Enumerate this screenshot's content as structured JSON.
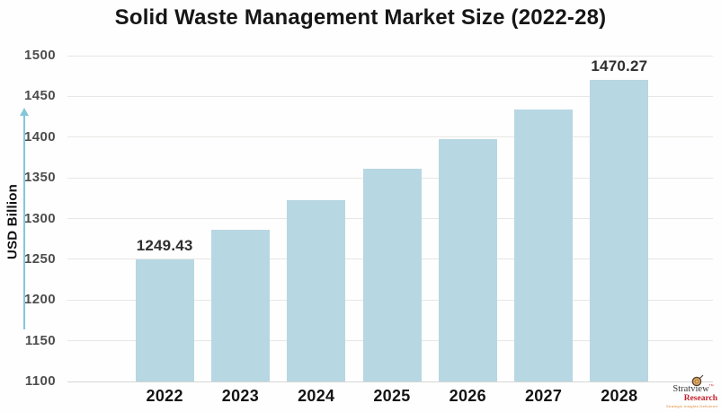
{
  "title": "Solid Waste Management Market Size (2022-28)",
  "y_axis": {
    "label": "USD Billion"
  },
  "chart_data": {
    "type": "bar",
    "title": "Solid Waste Management Market Size (2022-28)",
    "categories": [
      "2022",
      "2023",
      "2024",
      "2025",
      "2026",
      "2027",
      "2028"
    ],
    "values": [
      1249.43,
      1286,
      1323,
      1361,
      1397,
      1434,
      1470.27
    ],
    "bar_labels": [
      "1249.43",
      "",
      "",
      "",
      "",
      "",
      "1470.27"
    ],
    "xlabel": "",
    "ylabel": "USD Billion",
    "ylim": [
      1100,
      1500
    ],
    "yticks": [
      1500,
      1450,
      1400,
      1350,
      1300,
      1250,
      1200,
      1150,
      1100
    ],
    "grid": "horizontal",
    "legend": "none"
  },
  "branding": {
    "name": "Stratview",
    "trademark": "™",
    "division": "Research",
    "tagline": "Strategic Insights Delivered",
    "icon": "magnifying-glass-icon"
  },
  "colors": {
    "background": "#fefefe",
    "bar": "#b7d7e3",
    "gridline": "#e7e7e5",
    "gridline_bottom": "#d7d7d5",
    "axis_arrow": "#85c6da",
    "title_text": "#161616",
    "tick_text": "#4d4d4d",
    "value_text": "#2f2f2f",
    "brand_red": "#c2202e",
    "brand_orange": "#e0862e"
  }
}
